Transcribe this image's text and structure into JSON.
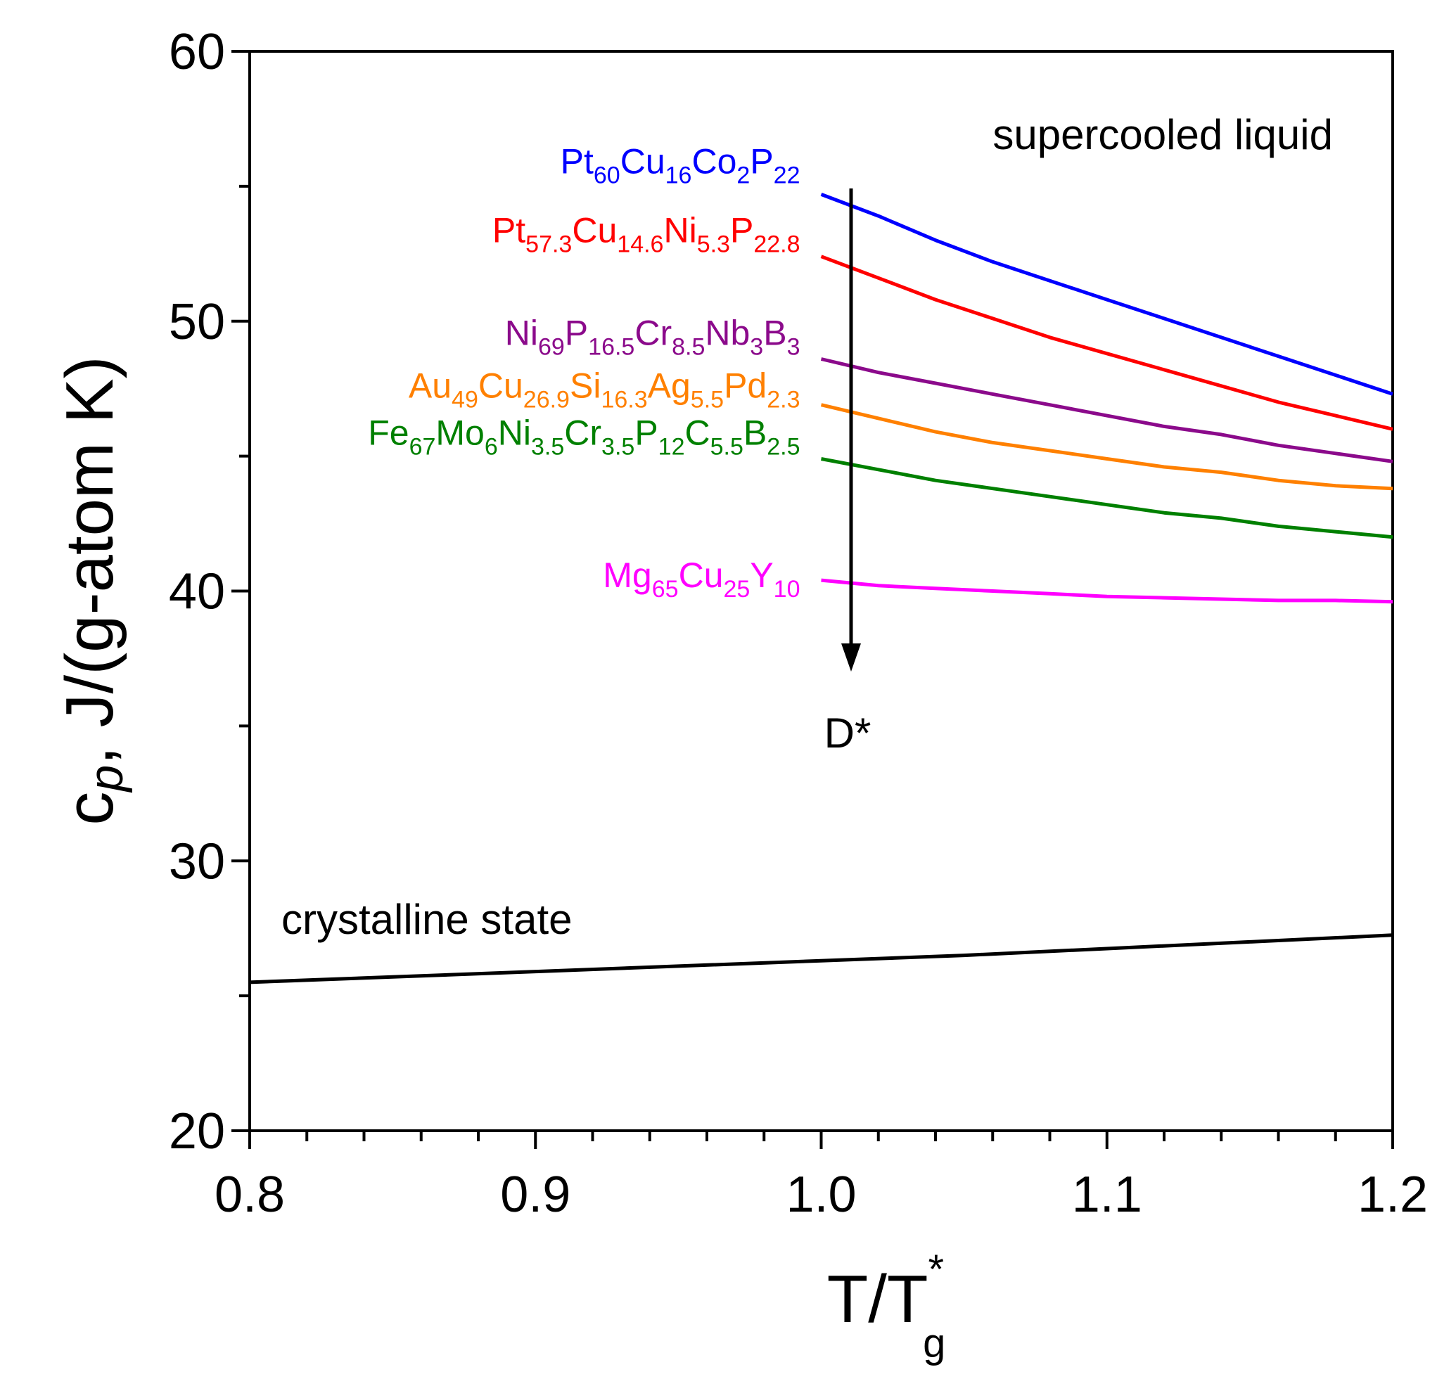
{
  "chart_data": {
    "type": "line",
    "title": "",
    "xlabel": {
      "main": "T/T",
      "sup": "*",
      "sub": "g"
    },
    "ylabel": {
      "pre": "c",
      "italic": "p",
      "post": ",  J/(g-atom K)"
    },
    "xlim": [
      0.8,
      1.2
    ],
    "ylim": [
      20,
      60
    ],
    "x_major_ticks": [
      0.8,
      0.9,
      1.0,
      1.1,
      1.2
    ],
    "x_tick_labels": [
      "0.8",
      "0.9",
      "1.0",
      "1.1",
      "1.2"
    ],
    "y_major_ticks": [
      20,
      30,
      40,
      50,
      60
    ],
    "y_tick_labels": [
      "20",
      "30",
      "40",
      "50",
      "60"
    ],
    "grid": false,
    "annotations": {
      "supercooled": "supercooled liquid",
      "crystalline": "crystalline state",
      "arrow_label": "D*"
    },
    "series": [
      {
        "name": "Pt60Cu16Co2P22",
        "color": "#0000ff",
        "label_parts": [
          [
            "Pt",
            ""
          ],
          [
            "60",
            "sub"
          ],
          [
            "Cu",
            ""
          ],
          [
            "16",
            "sub"
          ],
          [
            "Co",
            ""
          ],
          [
            "2",
            "sub"
          ],
          [
            "P",
            ""
          ],
          [
            "22",
            "sub"
          ]
        ],
        "x": [
          1.0,
          1.02,
          1.04,
          1.06,
          1.08,
          1.1,
          1.12,
          1.14,
          1.16,
          1.18,
          1.2
        ],
        "y": [
          54.7,
          53.9,
          53.0,
          52.2,
          51.5,
          50.8,
          50.1,
          49.4,
          48.7,
          48.0,
          47.3
        ]
      },
      {
        "name": "Pt57.3Cu14.6Ni5.3P22.8",
        "color": "#ff0000",
        "label_parts": [
          [
            "Pt",
            ""
          ],
          [
            "57.3",
            "sub"
          ],
          [
            "Cu",
            ""
          ],
          [
            "14.6",
            "sub"
          ],
          [
            "Ni",
            ""
          ],
          [
            "5.3",
            "sub"
          ],
          [
            "P",
            ""
          ],
          [
            "22.8",
            "sub"
          ]
        ],
        "x": [
          1.0,
          1.02,
          1.04,
          1.06,
          1.08,
          1.1,
          1.12,
          1.14,
          1.16,
          1.18,
          1.2
        ],
        "y": [
          52.4,
          51.6,
          50.8,
          50.1,
          49.4,
          48.8,
          48.2,
          47.6,
          47.0,
          46.5,
          46.0
        ]
      },
      {
        "name": "Ni69P16.5Cr8.5Nb3B3",
        "color": "#8b0a8b",
        "label_parts": [
          [
            "Ni",
            ""
          ],
          [
            "69",
            "sub"
          ],
          [
            "P",
            ""
          ],
          [
            "16.5",
            "sub"
          ],
          [
            "Cr",
            ""
          ],
          [
            "8.5",
            "sub"
          ],
          [
            "Nb",
            ""
          ],
          [
            "3",
            "sub"
          ],
          [
            "B",
            ""
          ],
          [
            "3",
            "sub"
          ]
        ],
        "x": [
          1.0,
          1.02,
          1.04,
          1.06,
          1.08,
          1.1,
          1.12,
          1.14,
          1.16,
          1.18,
          1.2
        ],
        "y": [
          48.6,
          48.1,
          47.7,
          47.3,
          46.9,
          46.5,
          46.1,
          45.8,
          45.4,
          45.1,
          44.8
        ]
      },
      {
        "name": "Au49Cu26.9Si16.3Ag5.5Pd2.3",
        "color": "#ff8000",
        "label_parts": [
          [
            "Au",
            ""
          ],
          [
            "49",
            "sub"
          ],
          [
            "Cu",
            ""
          ],
          [
            "26.9",
            "sub"
          ],
          [
            "Si",
            ""
          ],
          [
            "16.3",
            "sub"
          ],
          [
            "Ag",
            ""
          ],
          [
            "5.5",
            "sub"
          ],
          [
            "Pd",
            ""
          ],
          [
            "2.3",
            "sub"
          ]
        ],
        "x": [
          1.0,
          1.02,
          1.04,
          1.06,
          1.08,
          1.1,
          1.12,
          1.14,
          1.16,
          1.18,
          1.2
        ],
        "y": [
          46.9,
          46.4,
          45.9,
          45.5,
          45.2,
          44.9,
          44.6,
          44.4,
          44.1,
          43.9,
          43.8
        ]
      },
      {
        "name": "Fe67Mo6Ni3.5Cr3.5P12C5.5B2.5",
        "color": "#008000",
        "label_parts": [
          [
            "Fe",
            ""
          ],
          [
            "67",
            "sub"
          ],
          [
            "Mo",
            ""
          ],
          [
            "6",
            "sub"
          ],
          [
            "Ni",
            ""
          ],
          [
            "3.5",
            "sub"
          ],
          [
            "Cr",
            ""
          ],
          [
            "3.5",
            "sub"
          ],
          [
            "P",
            ""
          ],
          [
            "12",
            "sub"
          ],
          [
            "C",
            ""
          ],
          [
            "5.5",
            "sub"
          ],
          [
            "B",
            ""
          ],
          [
            "2.5",
            "sub"
          ]
        ],
        "x": [
          1.0,
          1.02,
          1.04,
          1.06,
          1.08,
          1.1,
          1.12,
          1.14,
          1.16,
          1.18,
          1.2
        ],
        "y": [
          44.9,
          44.5,
          44.1,
          43.8,
          43.5,
          43.2,
          42.9,
          42.7,
          42.4,
          42.2,
          42.0
        ]
      },
      {
        "name": "Mg65Cu25Y10",
        "color": "#ff00ff",
        "label_parts": [
          [
            "Mg",
            ""
          ],
          [
            "65",
            "sub"
          ],
          [
            "Cu",
            ""
          ],
          [
            "25",
            "sub"
          ],
          [
            "Y",
            ""
          ],
          [
            "10",
            "sub"
          ]
        ],
        "x": [
          1.0,
          1.02,
          1.04,
          1.06,
          1.08,
          1.1,
          1.12,
          1.14,
          1.16,
          1.18,
          1.2
        ],
        "y": [
          40.4,
          40.2,
          40.1,
          40.0,
          39.9,
          39.8,
          39.75,
          39.7,
          39.65,
          39.65,
          39.6
        ]
      },
      {
        "name": "crystalline state",
        "color": "#000000",
        "label_parts": [],
        "x": [
          0.8,
          0.85,
          0.9,
          0.95,
          1.0,
          1.05,
          1.1,
          1.15,
          1.2
        ],
        "y": [
          25.5,
          25.7,
          25.9,
          26.1,
          26.3,
          26.5,
          26.75,
          27.0,
          27.25
        ]
      }
    ]
  }
}
